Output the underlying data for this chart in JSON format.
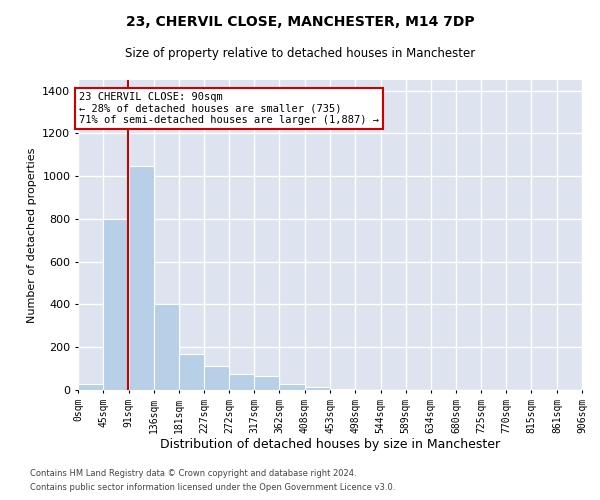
{
  "title": "23, CHERVIL CLOSE, MANCHESTER, M14 7DP",
  "subtitle": "Size of property relative to detached houses in Manchester",
  "xlabel": "Distribution of detached houses by size in Manchester",
  "ylabel": "Number of detached properties",
  "footnote1": "Contains HM Land Registry data © Crown copyright and database right 2024.",
  "footnote2": "Contains public sector information licensed under the Open Government Licence v3.0.",
  "bar_edges": [
    0,
    45,
    91,
    136,
    181,
    227,
    272,
    317,
    362,
    408,
    453,
    498,
    544,
    589,
    634,
    680,
    725,
    770,
    815,
    861,
    906
  ],
  "bar_heights": [
    30,
    800,
    1050,
    400,
    170,
    110,
    75,
    65,
    30,
    15,
    5,
    0,
    0,
    0,
    0,
    0,
    0,
    0,
    0,
    0
  ],
  "bar_color": "#b8cfe8",
  "background_color": "#dde4f0",
  "grid_color": "#ffffff",
  "property_size": 90,
  "property_label": "23 CHERVIL CLOSE: 90sqm",
  "annotation_line1": "← 28% of detached houses are smaller (735)",
  "annotation_line2": "71% of semi-detached houses are larger (1,887) →",
  "vline_color": "#cc0000",
  "annotation_box_edge_color": "#cc0000",
  "ylim": [
    0,
    1450
  ],
  "yticks": [
    0,
    200,
    400,
    600,
    800,
    1000,
    1200,
    1400
  ],
  "tick_labels": [
    "0sqm",
    "45sqm",
    "91sqm",
    "136sqm",
    "181sqm",
    "227sqm",
    "272sqm",
    "317sqm",
    "362sqm",
    "408sqm",
    "453sqm",
    "498sqm",
    "544sqm",
    "589sqm",
    "634sqm",
    "680sqm",
    "725sqm",
    "770sqm",
    "815sqm",
    "861sqm",
    "906sqm"
  ]
}
